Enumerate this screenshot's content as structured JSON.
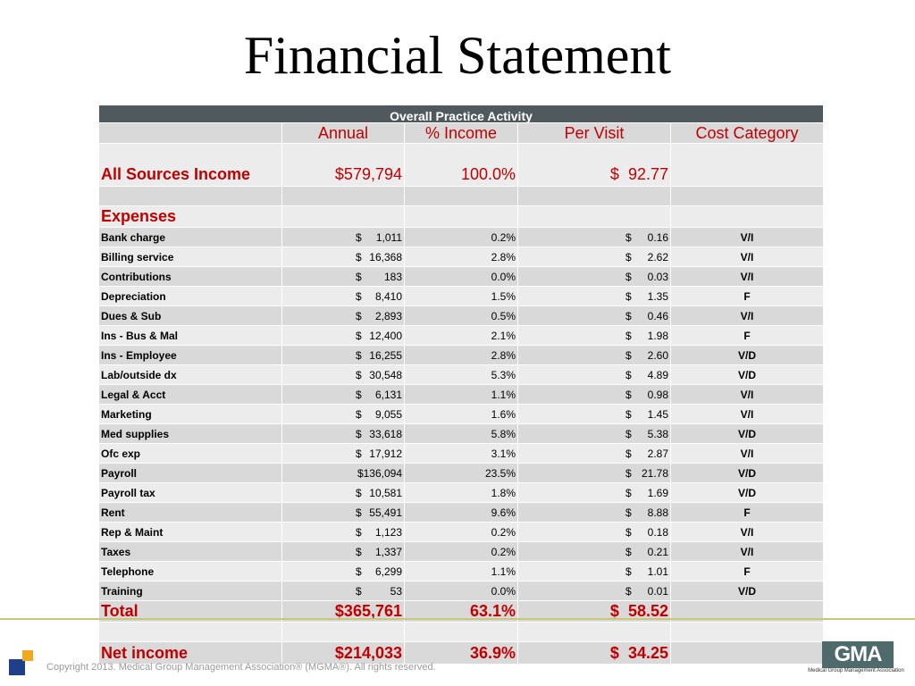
{
  "slide": {
    "title": "Financial Statement",
    "footer": "Copyright 2013. Medical Group Management Association® (MGMA®). All rights reserved.",
    "logo_text": "GMA",
    "logo_subtext": "Medical Group Management Association"
  },
  "table": {
    "band_title": "Overall Practice Activity",
    "headers": [
      "Annual",
      "% Income",
      "Per Visit",
      "Cost Category"
    ],
    "income": {
      "label": "All Sources Income",
      "annual": "$579,794",
      "pct": "100.0%",
      "per_visit_sym": "$",
      "per_visit": "92.77"
    },
    "expenses_label": "Expenses",
    "rows": [
      {
        "label": "Bank charge",
        "sym": "$",
        "annual": "1,011",
        "pct": "0.2%",
        "pv_sym": "$",
        "pv": "0.16",
        "cat": "V/I"
      },
      {
        "label": "Billing service",
        "sym": "$",
        "annual": "16,368",
        "pct": "2.8%",
        "pv_sym": "$",
        "pv": "2.62",
        "cat": "V/I"
      },
      {
        "label": "Contributions",
        "sym": "$",
        "annual": "183",
        "pct": "0.0%",
        "pv_sym": "$",
        "pv": "0.03",
        "cat": "V/I"
      },
      {
        "label": "Depreciation",
        "sym": "$",
        "annual": "8,410",
        "pct": "1.5%",
        "pv_sym": "$",
        "pv": "1.35",
        "cat": "F"
      },
      {
        "label": "Dues & Sub",
        "sym": "$",
        "annual": "2,893",
        "pct": "0.5%",
        "pv_sym": "$",
        "pv": "0.46",
        "cat": "V/I"
      },
      {
        "label": "Ins - Bus & Mal",
        "sym": "$",
        "annual": "12,400",
        "pct": "2.1%",
        "pv_sym": "$",
        "pv": "1.98",
        "cat": "F"
      },
      {
        "label": "Ins - Employee",
        "sym": "$",
        "annual": "16,255",
        "pct": "2.8%",
        "pv_sym": "$",
        "pv": "2.60",
        "cat": "V/D"
      },
      {
        "label": "Lab/outside dx",
        "sym": "$",
        "annual": "30,548",
        "pct": "5.3%",
        "pv_sym": "$",
        "pv": "4.89",
        "cat": "V/D"
      },
      {
        "label": "Legal & Acct",
        "sym": "$",
        "annual": "6,131",
        "pct": "1.1%",
        "pv_sym": "$",
        "pv": "0.98",
        "cat": "V/I"
      },
      {
        "label": "Marketing",
        "sym": "$",
        "annual": "9,055",
        "pct": "1.6%",
        "pv_sym": "$",
        "pv": "1.45",
        "cat": "V/I"
      },
      {
        "label": "Med supplies",
        "sym": "$",
        "annual": "33,618",
        "pct": "5.8%",
        "pv_sym": "$",
        "pv": "5.38",
        "cat": "V/D"
      },
      {
        "label": "Ofc exp",
        "sym": "$",
        "annual": "17,912",
        "pct": "3.1%",
        "pv_sym": "$",
        "pv": "2.87",
        "cat": "V/I"
      },
      {
        "label": "Payroll",
        "sym": "",
        "annual": "$136,094",
        "pct": "23.5%",
        "pv_sym": "$",
        "pv": "21.78",
        "cat": "V/D"
      },
      {
        "label": "Payroll tax",
        "sym": "$",
        "annual": "10,581",
        "pct": "1.8%",
        "pv_sym": "$",
        "pv": "1.69",
        "cat": "V/D"
      },
      {
        "label": "Rent",
        "sym": "$",
        "annual": "55,491",
        "pct": "9.6%",
        "pv_sym": "$",
        "pv": "8.88",
        "cat": "F"
      },
      {
        "label": "Rep & Maint",
        "sym": "$",
        "annual": "1,123",
        "pct": "0.2%",
        "pv_sym": "$",
        "pv": "0.18",
        "cat": "V/I"
      },
      {
        "label": "Taxes",
        "sym": "$",
        "annual": "1,337",
        "pct": "0.2%",
        "pv_sym": "$",
        "pv": "0.21",
        "cat": "V/I"
      },
      {
        "label": "Telephone",
        "sym": "$",
        "annual": "6,299",
        "pct": "1.1%",
        "pv_sym": "$",
        "pv": "1.01",
        "cat": "F"
      },
      {
        "label": "Training",
        "sym": "$",
        "annual": "53",
        "pct": "0.0%",
        "pv_sym": "$",
        "pv": "0.01",
        "cat": "V/D"
      }
    ],
    "total": {
      "label": "Total",
      "annual": "$365,761",
      "pct": "63.1%",
      "pv_sym": "$",
      "pv": "58.52"
    },
    "net": {
      "label": "Net income",
      "annual": "$214,033",
      "pct": "36.9%",
      "pv_sym": "$",
      "pv": "34.25"
    }
  }
}
